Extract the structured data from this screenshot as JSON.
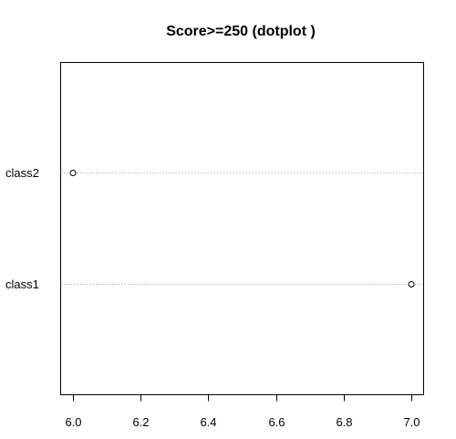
{
  "chart_data": {
    "type": "scatter",
    "title": "Score>=250 (dotplot )",
    "xlabel": "",
    "ylabel": "",
    "categories": [
      "class1",
      "class2"
    ],
    "values": [
      7.0,
      6.0
    ],
    "xlim": [
      6.0,
      7.0
    ],
    "xticks": [
      "6.0",
      "6.2",
      "6.4",
      "6.6",
      "6.8",
      "7.0"
    ],
    "grid": false,
    "guide_lines": "dotted",
    "point_style": "open-circle"
  }
}
